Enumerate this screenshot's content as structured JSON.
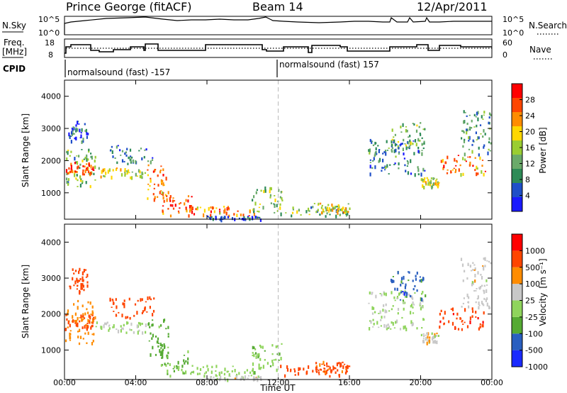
{
  "header": {
    "station": "Prince George (fitACF)",
    "beam": "Beam 14",
    "date": "12/Apr/2011"
  },
  "panels": {
    "nsky": {
      "left_label": "N.Sky",
      "left_ticks": [
        "10^5",
        "10^0"
      ],
      "right_label": "N.Search",
      "right_ticks": [
        "10^5",
        "10^0"
      ]
    },
    "freq": {
      "left_label_1": "Freq.",
      "left_label_2": "[MHz]",
      "left_ticks": [
        "18",
        "8"
      ],
      "right_label": "Nave",
      "right_ticks": [
        "60",
        "0"
      ]
    },
    "cpid": {
      "label": "CPID",
      "program_1": "normalsound (fast) -157",
      "program_2": "normalsound (fast) 157"
    }
  },
  "colors": {
    "power_scale": [
      "#1a1aff",
      "#1f4fc8",
      "#2e8b57",
      "#6aaa6a",
      "#9acd32",
      "#ffd700",
      "#ff8c00",
      "#ff4500",
      "#ff0000"
    ],
    "velocity_scale": [
      "#ff0000",
      "#ff4500",
      "#ff8c00",
      "#c8c8c8",
      "#8fd45c",
      "#55aa33",
      "#2a5fc0",
      "#1a2aff"
    ]
  },
  "chart_data": [
    {
      "type": "heatmap",
      "name": "power",
      "ylabel": "Slant Range [km]",
      "xlabel": "",
      "x_ticks": [
        "00:00",
        "04:00",
        "08:00",
        "12:00",
        "16:00",
        "20:00",
        "00:00"
      ],
      "y_ticks": [
        "1000",
        "2000",
        "3000",
        "4000"
      ],
      "xlim_hours": [
        0,
        24
      ],
      "ylim_km": [
        180,
        4500
      ],
      "colorbar_label": "Power [dB]",
      "colorbar_ticks": [
        "28",
        "24",
        "20",
        "16",
        "12",
        "8",
        "4"
      ],
      "colorbar_range": [
        0,
        30
      ],
      "dashed_line_hour": 12
    },
    {
      "type": "heatmap",
      "name": "velocity",
      "ylabel": "Slant Range [km]",
      "xlabel": "Time UT",
      "x_ticks": [
        "00:00",
        "04:00",
        "08:00",
        "12:00",
        "16:00",
        "20:00",
        "00:00"
      ],
      "y_ticks": [
        "1000",
        "2000",
        "3000",
        "4000"
      ],
      "xlim_hours": [
        0,
        24
      ],
      "ylim_km": [
        180,
        4500
      ],
      "colorbar_label": "Velocity",
      "colorbar_unit": "[m s⁻¹]",
      "colorbar_ticks": [
        "1000",
        "500",
        "100",
        "25",
        "-25",
        "-100",
        "-500",
        "-1000"
      ],
      "dashed_line_hour": 12
    }
  ]
}
